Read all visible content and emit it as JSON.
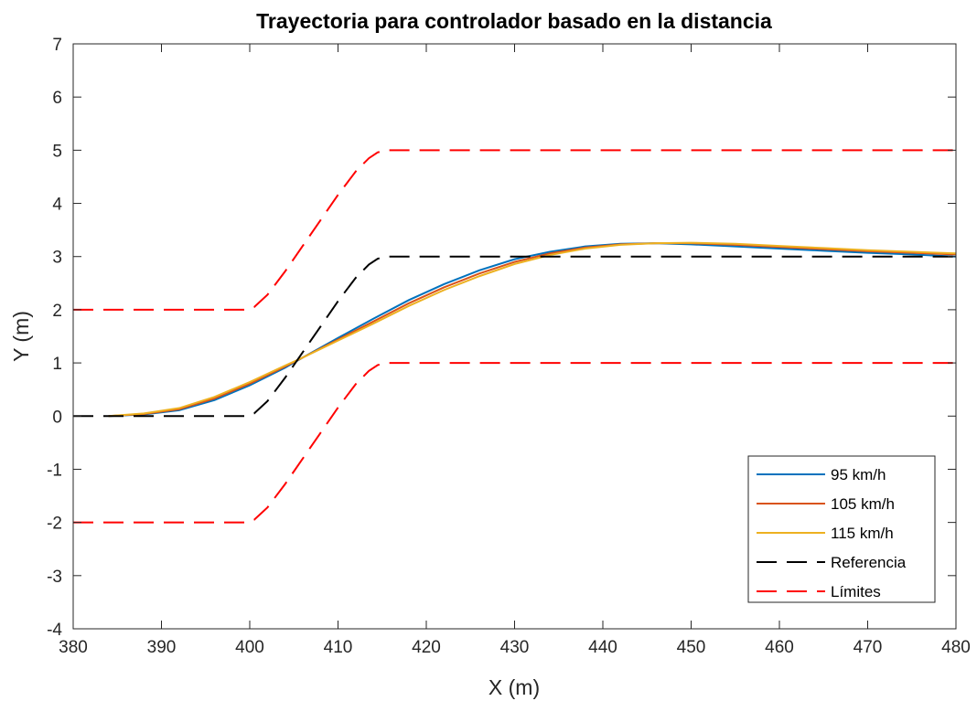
{
  "chart_data": {
    "type": "line",
    "title": "Trayectoria para controlador basado en la distancia",
    "xlabel": "X (m)",
    "ylabel": "Y (m)",
    "xlim": [
      380,
      480
    ],
    "ylim": [
      -4,
      7
    ],
    "xticks": [
      "380",
      "390",
      "400",
      "410",
      "420",
      "430",
      "440",
      "450",
      "460",
      "470",
      "480"
    ],
    "yticks": [
      "-4",
      "-3",
      "-2",
      "-1",
      "0",
      "1",
      "2",
      "3",
      "4",
      "5",
      "6",
      "7"
    ],
    "grid": false,
    "legend_position": "bottom-right",
    "series": [
      {
        "name": "95 km/h",
        "color": "#0072bd",
        "dash": "solid",
        "x": [
          384,
          388,
          392,
          396,
          400,
          404,
          406,
          410,
          414,
          418,
          422,
          426,
          430,
          434,
          438,
          442,
          446,
          450,
          455,
          460,
          465,
          470,
          475,
          480
        ],
        "y": [
          0,
          0.03,
          0.11,
          0.3,
          0.58,
          0.91,
          1.1,
          1.47,
          1.83,
          2.18,
          2.48,
          2.74,
          2.95,
          3.09,
          3.19,
          3.24,
          3.25,
          3.23,
          3.19,
          3.15,
          3.11,
          3.07,
          3.04,
          3.0
        ]
      },
      {
        "name": "105 km/h",
        "color": "#d95319",
        "dash": "solid",
        "x": [
          384,
          388,
          392,
          396,
          400,
          404,
          406,
          410,
          414,
          418,
          422,
          426,
          430,
          434,
          438,
          442,
          446,
          450,
          455,
          460,
          465,
          470,
          475,
          480
        ],
        "y": [
          0,
          0.04,
          0.13,
          0.33,
          0.61,
          0.93,
          1.1,
          1.44,
          1.78,
          2.12,
          2.42,
          2.68,
          2.9,
          3.06,
          3.17,
          3.23,
          3.25,
          3.25,
          3.22,
          3.18,
          3.14,
          3.1,
          3.07,
          3.04
        ]
      },
      {
        "name": "115 km/h",
        "color": "#edb120",
        "dash": "solid",
        "x": [
          384,
          388,
          392,
          396,
          400,
          404,
          406,
          410,
          414,
          418,
          422,
          426,
          430,
          434,
          438,
          442,
          446,
          450,
          455,
          460,
          465,
          470,
          475,
          480
        ],
        "y": [
          0,
          0.05,
          0.15,
          0.36,
          0.64,
          0.95,
          1.1,
          1.42,
          1.74,
          2.07,
          2.37,
          2.63,
          2.86,
          3.03,
          3.15,
          3.22,
          3.25,
          3.26,
          3.24,
          3.2,
          3.16,
          3.12,
          3.09,
          3.06
        ]
      },
      {
        "name": "Referencia",
        "color": "#000000",
        "dash": "dashed",
        "x": [
          380,
          399.5,
          400.5,
          402,
          404,
          406,
          408,
          410,
          412,
          413.5,
          414.5,
          415.5,
          480
        ],
        "y": [
          0,
          0,
          0.05,
          0.28,
          0.72,
          1.2,
          1.68,
          2.16,
          2.6,
          2.85,
          2.96,
          3.0,
          3.0
        ]
      },
      {
        "name": "Límites",
        "color": "#ff0000",
        "dash": "dashed",
        "x": [
          380,
          399.5,
          400.5,
          402,
          404,
          406,
          408,
          410,
          412,
          413.5,
          414.5,
          415.5,
          480
        ],
        "y": [
          2,
          2,
          2.05,
          2.28,
          2.72,
          3.2,
          3.68,
          4.16,
          4.6,
          4.85,
          4.96,
          5.0,
          5.0
        ]
      },
      {
        "name": "",
        "color": "#ff0000",
        "dash": "dashed",
        "x": [
          380,
          399.5,
          400.5,
          402,
          404,
          406,
          408,
          410,
          412,
          413.5,
          414.5,
          415.5,
          480
        ],
        "y": [
          -2,
          -2,
          -1.95,
          -1.72,
          -1.28,
          -0.8,
          -0.32,
          0.16,
          0.6,
          0.85,
          0.96,
          1.0,
          1.0
        ]
      }
    ]
  }
}
